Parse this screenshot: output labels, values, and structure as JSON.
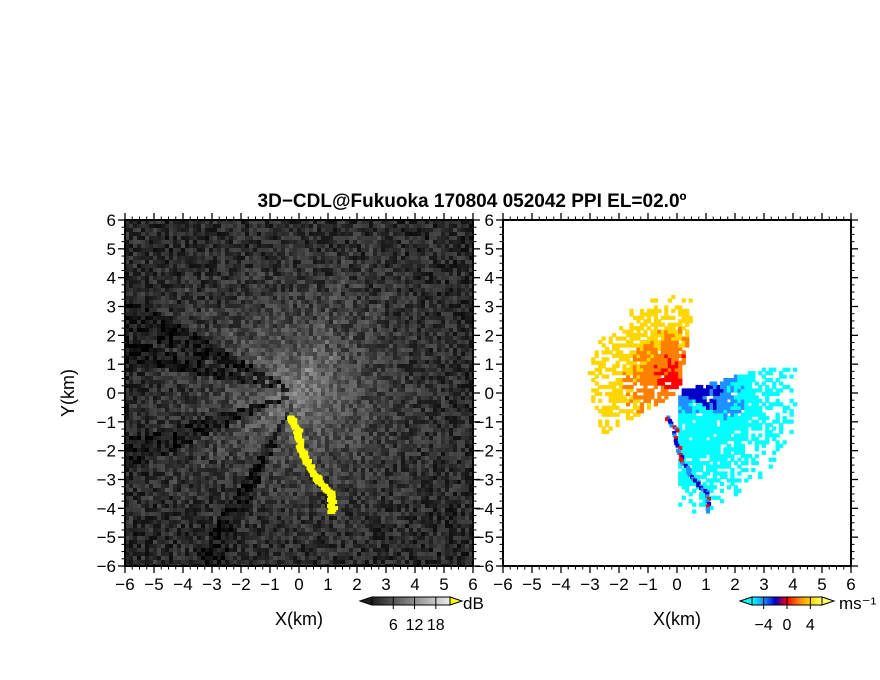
{
  "title": "3D−CDL@Fukuoka 170804 052042 PPI EL=02.0º",
  "chart_data": [
    {
      "type": "heatmap",
      "panel": "left",
      "quantity": "signal intensity",
      "xlabel": "X(km)",
      "ylabel": "Y(km)",
      "xlim": [
        -6,
        6
      ],
      "ylim": [
        -6,
        6
      ],
      "xticks": [
        "−6",
        "−5",
        "−4",
        "−3",
        "−2",
        "−1",
        "0",
        "1",
        "2",
        "3",
        "4",
        "5",
        "6"
      ],
      "yticks": [
        "6",
        "5",
        "4",
        "3",
        "2",
        "1",
        "0",
        "−1",
        "−2",
        "−3",
        "−4",
        "−5",
        "−6"
      ],
      "grid": false,
      "colorbar": {
        "unit": "dB",
        "ticks": [
          "6",
          "12",
          "18"
        ],
        "tick_values": [
          6,
          12,
          18
        ],
        "range": [
          0,
          22
        ],
        "colormap": "grayscale",
        "low_color": "#000000",
        "high_color": "#ffffff",
        "over_color": "#ffff00"
      },
      "features": {
        "field": "grey noise brightening toward the radar at the origin",
        "dark_sectors_deg": [
          [
            150,
            160
          ],
          [
            162,
            170
          ],
          [
            195,
            205
          ],
          [
            238,
            246
          ]
        ],
        "bright_rays_deg": [
          48,
          62,
          70,
          138,
          216
        ],
        "yellow_return": {
          "color": "#ffff00",
          "path_km": [
            [
              -0.35,
              -0.85
            ],
            [
              -0.05,
              -1.3
            ],
            [
              0.05,
              -2.0
            ],
            [
              0.35,
              -2.6
            ],
            [
              0.7,
              -3.1
            ],
            [
              1.05,
              -3.5
            ],
            [
              1.15,
              -4.2
            ]
          ]
        }
      }
    },
    {
      "type": "heatmap",
      "panel": "right",
      "quantity": "radial velocity",
      "xlabel": "X(km)",
      "ylabel": "",
      "xlim": [
        -6,
        6
      ],
      "ylim": [
        -6,
        6
      ],
      "xticks": [
        "−6",
        "−5",
        "−4",
        "−3",
        "−2",
        "−1",
        "0",
        "1",
        "2",
        "3",
        "4",
        "5",
        "6"
      ],
      "yticks": [
        "6",
        "5",
        "4",
        "3",
        "2",
        "1",
        "0",
        "−1",
        "−2",
        "−3",
        "−4",
        "−5",
        "−6"
      ],
      "grid": false,
      "colorbar": {
        "unit": "ms⁻¹",
        "ticks": [
          "−4",
          "0",
          "4"
        ],
        "tick_values": [
          -4,
          0,
          4
        ],
        "range": [
          -6,
          6
        ],
        "colormap": [
          "#00ffff",
          "#1e90ff",
          "#0000c8",
          "#ff0000",
          "#ff7f00",
          "#ffd700",
          "#ffff66"
        ]
      },
      "features": {
        "negative_lobe": {
          "sector_deg": [
            -90,
            15
          ],
          "range_km": [
            0.1,
            4.2
          ],
          "colors": [
            "#0000c8",
            "#1e90ff",
            "#00ffff"
          ]
        },
        "positive_lobe": {
          "sector_deg": [
            80,
            170
          ],
          "range_km": [
            0.1,
            3.3
          ],
          "colors": [
            "#ff0000",
            "#ff7f00",
            "#ffd700"
          ]
        },
        "west_lobe": {
          "sector_deg": [
            172,
            210
          ],
          "range_km": [
            0.2,
            3.0
          ],
          "colors": [
            "#ffd700",
            "#ff7f00"
          ]
        },
        "south_streak": {
          "path_km": [
            [
              -0.35,
              -0.85
            ],
            [
              -0.05,
              -1.3
            ],
            [
              0.05,
              -2.0
            ],
            [
              0.35,
              -2.6
            ],
            [
              0.7,
              -3.1
            ],
            [
              1.05,
              -3.5
            ],
            [
              1.15,
              -4.2
            ]
          ],
          "colors": [
            "#0000c8",
            "#ff0000",
            "#1e90ff"
          ]
        }
      }
    }
  ]
}
